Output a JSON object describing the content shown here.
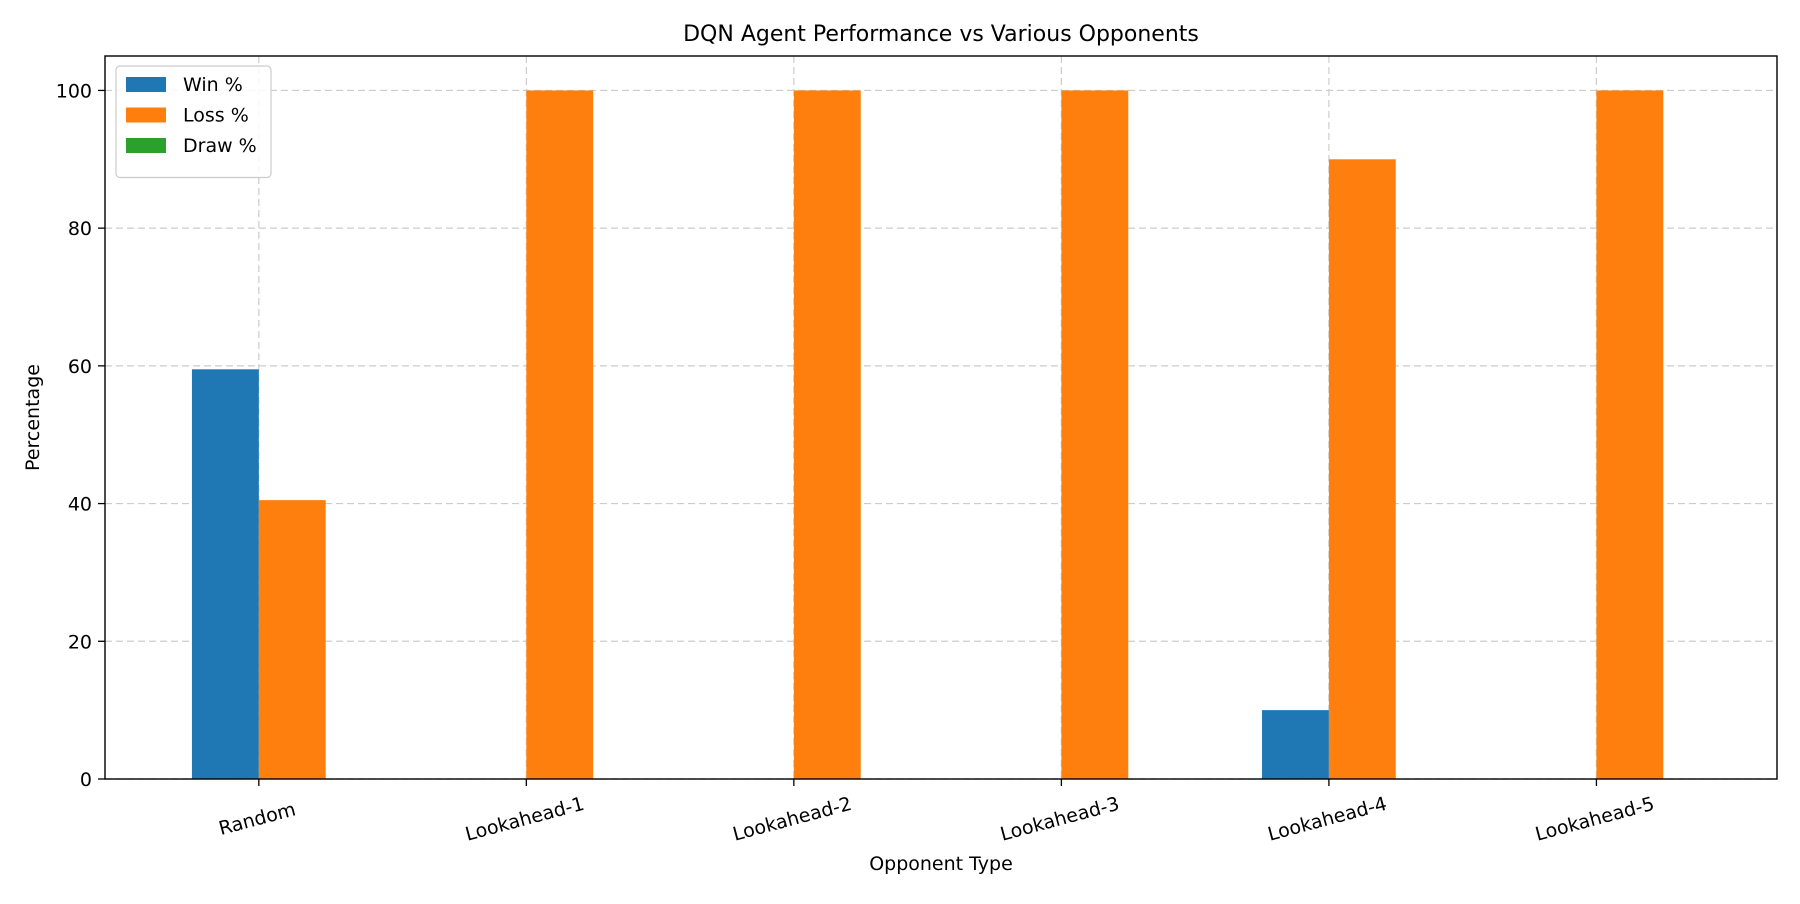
{
  "chart_data": {
    "type": "bar",
    "title": "DQN Agent Performance vs Various Opponents",
    "xlabel": "Opponent Type",
    "ylabel": "Percentage",
    "categories": [
      "Random",
      "Lookahead-1",
      "Lookahead-2",
      "Lookahead-3",
      "Lookahead-4",
      "Lookahead-5"
    ],
    "series": [
      {
        "name": "Win %",
        "color": "#1f77b4",
        "values": [
          59.5,
          0,
          0,
          0,
          10,
          0
        ]
      },
      {
        "name": "Loss %",
        "color": "#ff7f0e",
        "values": [
          40.5,
          100,
          100,
          100,
          90,
          100
        ]
      },
      {
        "name": "Draw %",
        "color": "#2ca02c",
        "values": [
          0,
          0,
          0,
          0,
          0,
          0
        ]
      }
    ],
    "ylim": [
      0,
      105
    ],
    "yticks": [
      0,
      20,
      40,
      60,
      80,
      100
    ],
    "grid": true,
    "legend": "top-left",
    "xtick_rotation_deg": -15
  }
}
